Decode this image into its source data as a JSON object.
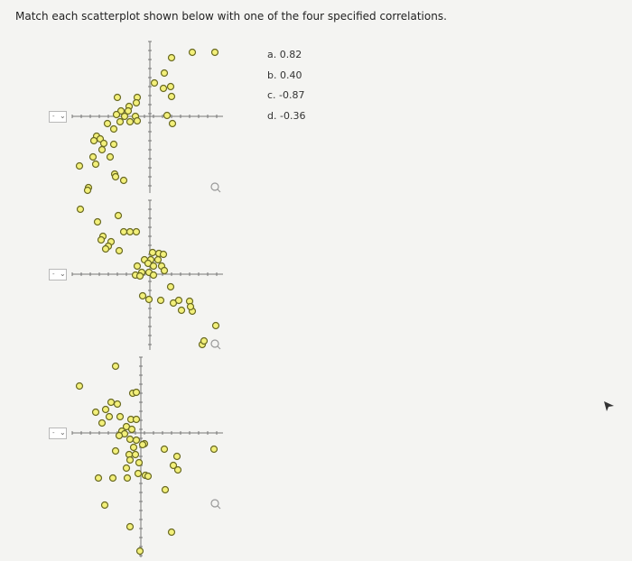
{
  "question": "Match each scatterplot shown below with one of the four specified correlations.",
  "options": [
    "a. 0.82",
    "b. 0.40",
    "c. -0.87",
    "d. -0.36"
  ],
  "dropdowns": [
    {
      "value": "-",
      "icon": "chevron-down-icon"
    },
    {
      "value": "-",
      "icon": "chevron-down-icon"
    },
    {
      "value": "-",
      "icon": "chevron-down-icon"
    }
  ],
  "colors": {
    "marker_fill": "#f3f07a",
    "marker_stroke": "#6a6a22",
    "axis": "#777777",
    "background": "#f4f4f2"
  }
}
